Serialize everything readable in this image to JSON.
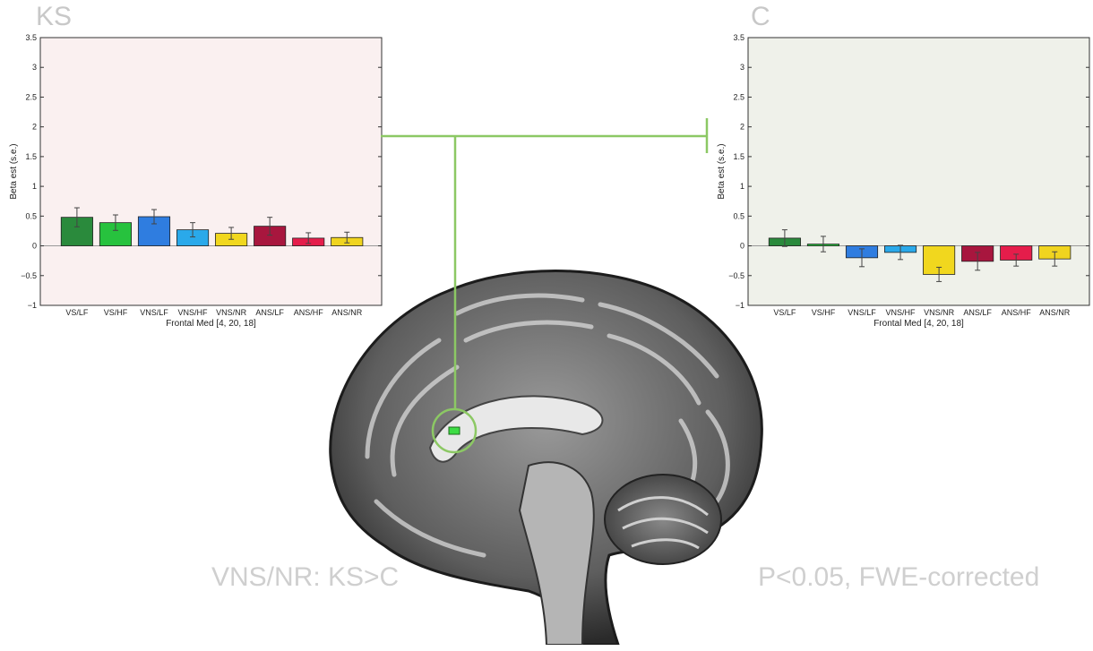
{
  "panels": {
    "left_title": "KS",
    "right_title": "C"
  },
  "captions": {
    "left": "VNS/NR: KS>C",
    "right": "P<0.05, FWE-corrected"
  },
  "colors": {
    "connector": "#8cc864",
    "highlight": "#3ddc44",
    "left_bg": "#faf0f0",
    "right_bg": "#eff1ea"
  },
  "chart_data": [
    {
      "type": "bar",
      "panel": "KS",
      "categories": [
        "VS/LF",
        "VS/HF",
        "VNS/LF",
        "VNS/HF",
        "VNS/NR",
        "ANS/LF",
        "ANS/HF",
        "ANS/NR"
      ],
      "values": [
        0.48,
        0.39,
        0.49,
        0.27,
        0.21,
        0.33,
        0.13,
        0.14
      ],
      "errors": [
        0.16,
        0.13,
        0.12,
        0.12,
        0.1,
        0.15,
        0.09,
        0.09
      ],
      "colors": [
        "#2a8a3c",
        "#27c23e",
        "#2f7de0",
        "#2aa9ea",
        "#f1d71e",
        "#a8163e",
        "#e51d4b",
        "#f0d41f"
      ],
      "xlabel": "Frontal Med [4, 20, 18]",
      "ylabel": "Beta est (s.e.)",
      "ylim": [
        -1,
        3.5
      ],
      "yticks": [
        "−1",
        "−0.5",
        "0",
        "0.5",
        "1",
        "1.5",
        "2",
        "2.5",
        "3",
        "3.5"
      ],
      "ytick_values": [
        -1,
        -0.5,
        0,
        0.5,
        1,
        1.5,
        2,
        2.5,
        3,
        3.5
      ]
    },
    {
      "type": "bar",
      "panel": "C",
      "categories": [
        "VS/LF",
        "VS/HF",
        "VNS/LF",
        "VNS/HF",
        "VNS/NR",
        "ANS/LF",
        "ANS/HF",
        "ANS/NR"
      ],
      "values": [
        0.13,
        0.03,
        -0.2,
        -0.11,
        -0.48,
        -0.26,
        -0.24,
        -0.22
      ],
      "errors": [
        0.14,
        0.13,
        0.15,
        0.12,
        0.12,
        0.15,
        0.1,
        0.12
      ],
      "colors": [
        "#2a8a3c",
        "#27c23e",
        "#2f7de0",
        "#2aa9ea",
        "#f1d71e",
        "#a8163e",
        "#e51d4b",
        "#f0d41f"
      ],
      "xlabel": "Frontal Med [4, 20, 18]",
      "ylabel": "Beta est (s.e.)",
      "ylim": [
        -1,
        3.5
      ],
      "yticks": [
        "−1",
        "−0.5",
        "0",
        "0.5",
        "1",
        "1.5",
        "2",
        "2.5",
        "3",
        "3.5"
      ],
      "ytick_values": [
        -1,
        -0.5,
        0,
        0.5,
        1,
        1.5,
        2,
        2.5,
        3,
        3.5
      ]
    }
  ]
}
